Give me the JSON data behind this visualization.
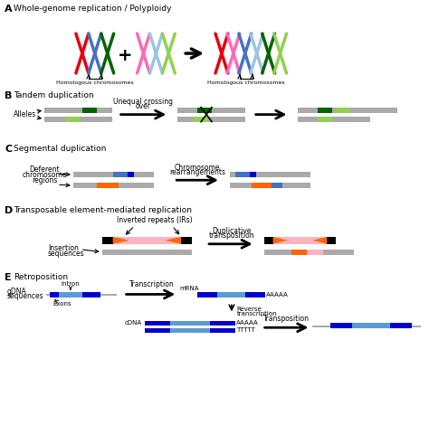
{
  "colors": {
    "red": "#e8000e",
    "blue": "#4472c4",
    "green": "#00a550",
    "pink": "#ff69b4",
    "light_blue": "#9dc3e6",
    "light_green": "#92d050",
    "gray": "#aaaaaa",
    "orange": "#ff6600",
    "light_pink": "#ffb3c1",
    "dark_blue": "#0000cd",
    "steel_blue": "#5b9bd5",
    "black": "#000000",
    "white": "#ffffff",
    "dark_green": "#006400"
  },
  "section_labels": [
    "A",
    "B",
    "C",
    "D",
    "E"
  ],
  "section_titles": [
    "Whole-genome replication / Polyploidy",
    "Tandem duplication",
    "Segmental duplication",
    "Transposable element-mediated replication",
    "Retroposition"
  ]
}
